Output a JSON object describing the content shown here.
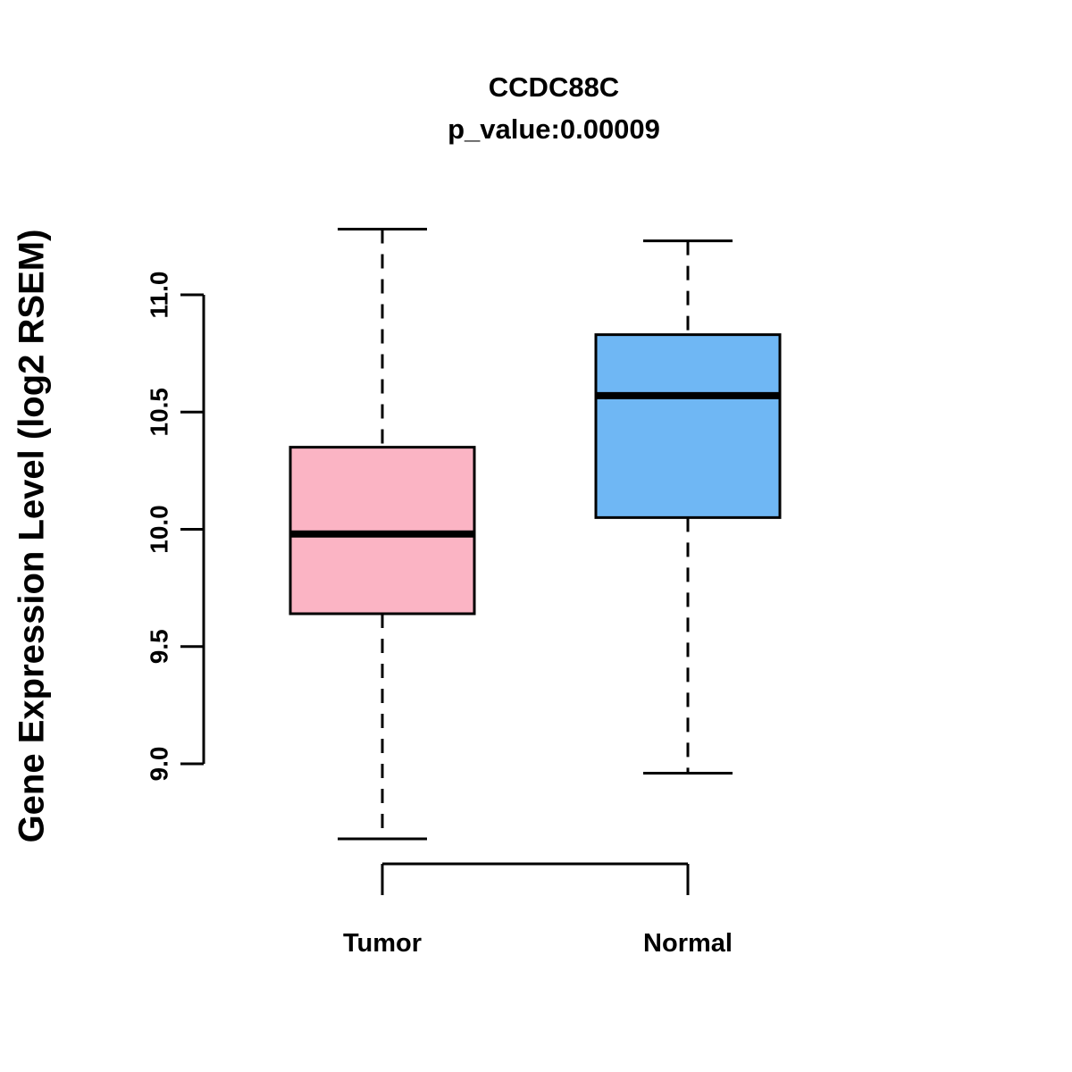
{
  "chart_data": {
    "type": "boxplot",
    "title": "CCDC88C",
    "subtitle": "p_value:0.00009",
    "ylabel": "Gene Expression Level (log2 RSEM)",
    "xlabel": "",
    "categories": [
      "Tumor",
      "Normal"
    ],
    "series": [
      {
        "name": "Tumor",
        "color": "#FBB4C4",
        "whisker_low": 8.68,
        "q1": 9.64,
        "median": 9.98,
        "q3": 10.35,
        "whisker_high": 11.28
      },
      {
        "name": "Normal",
        "color": "#6FB7F4",
        "whisker_low": 8.96,
        "q1": 10.05,
        "median": 10.57,
        "q3": 10.83,
        "whisker_high": 11.23
      }
    ],
    "yticks": [
      9.0,
      9.5,
      10.0,
      10.5,
      11.0
    ],
    "ylim": [
      8.5,
      11.4
    ],
    "grid": false,
    "legend": "none",
    "line_color": "#000000"
  }
}
